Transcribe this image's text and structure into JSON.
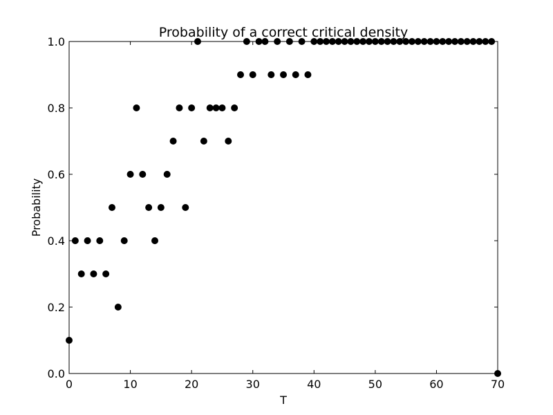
{
  "chart_data": {
    "type": "scatter",
    "title": "Probability of a correct critical density",
    "xlabel": "T",
    "ylabel": "Probability",
    "xlim": [
      0,
      70
    ],
    "ylim": [
      0.0,
      1.0
    ],
    "xticks": [
      0,
      10,
      20,
      30,
      40,
      50,
      60,
      70
    ],
    "xtick_labels": [
      "0",
      "10",
      "20",
      "30",
      "40",
      "50",
      "60",
      "70"
    ],
    "yticks": [
      0.0,
      0.2,
      0.4,
      0.6,
      0.8,
      1.0
    ],
    "ytick_labels": [
      "0.0",
      "0.2",
      "0.4",
      "0.6",
      "0.8",
      "1.0"
    ],
    "grid": false,
    "legend": "none",
    "marker_color": "#000000",
    "x": [
      0,
      1,
      2,
      3,
      4,
      5,
      6,
      7,
      8,
      9,
      10,
      11,
      12,
      13,
      14,
      15,
      16,
      17,
      18,
      19,
      20,
      21,
      22,
      23,
      24,
      25,
      26,
      27,
      28,
      29,
      30,
      31,
      32,
      33,
      34,
      35,
      36,
      37,
      38,
      39,
      40,
      41,
      42,
      43,
      44,
      45,
      46,
      47,
      48,
      49,
      50,
      51,
      52,
      53,
      54,
      55,
      56,
      57,
      58,
      59,
      60,
      61,
      62,
      63,
      64,
      65,
      66,
      67,
      68,
      69,
      70
    ],
    "y": [
      0.1,
      0.4,
      0.3,
      0.4,
      0.3,
      0.4,
      0.3,
      0.5,
      0.2,
      0.4,
      0.6,
      0.8,
      0.6,
      0.5,
      0.4,
      0.5,
      0.6,
      0.7,
      0.8,
      0.5,
      0.8,
      1.0,
      0.7,
      0.8,
      0.8,
      0.8,
      0.7,
      0.8,
      0.9,
      1.0,
      0.9,
      1.0,
      1.0,
      0.9,
      1.0,
      0.9,
      1.0,
      0.9,
      1.0,
      0.9,
      1.0,
      1.0,
      1.0,
      1.0,
      1.0,
      1.0,
      1.0,
      1.0,
      1.0,
      1.0,
      1.0,
      1.0,
      1.0,
      1.0,
      1.0,
      1.0,
      1.0,
      1.0,
      1.0,
      1.0,
      1.0,
      1.0,
      1.0,
      1.0,
      1.0,
      1.0,
      1.0,
      1.0,
      1.0,
      1.0,
      0.0
    ]
  }
}
